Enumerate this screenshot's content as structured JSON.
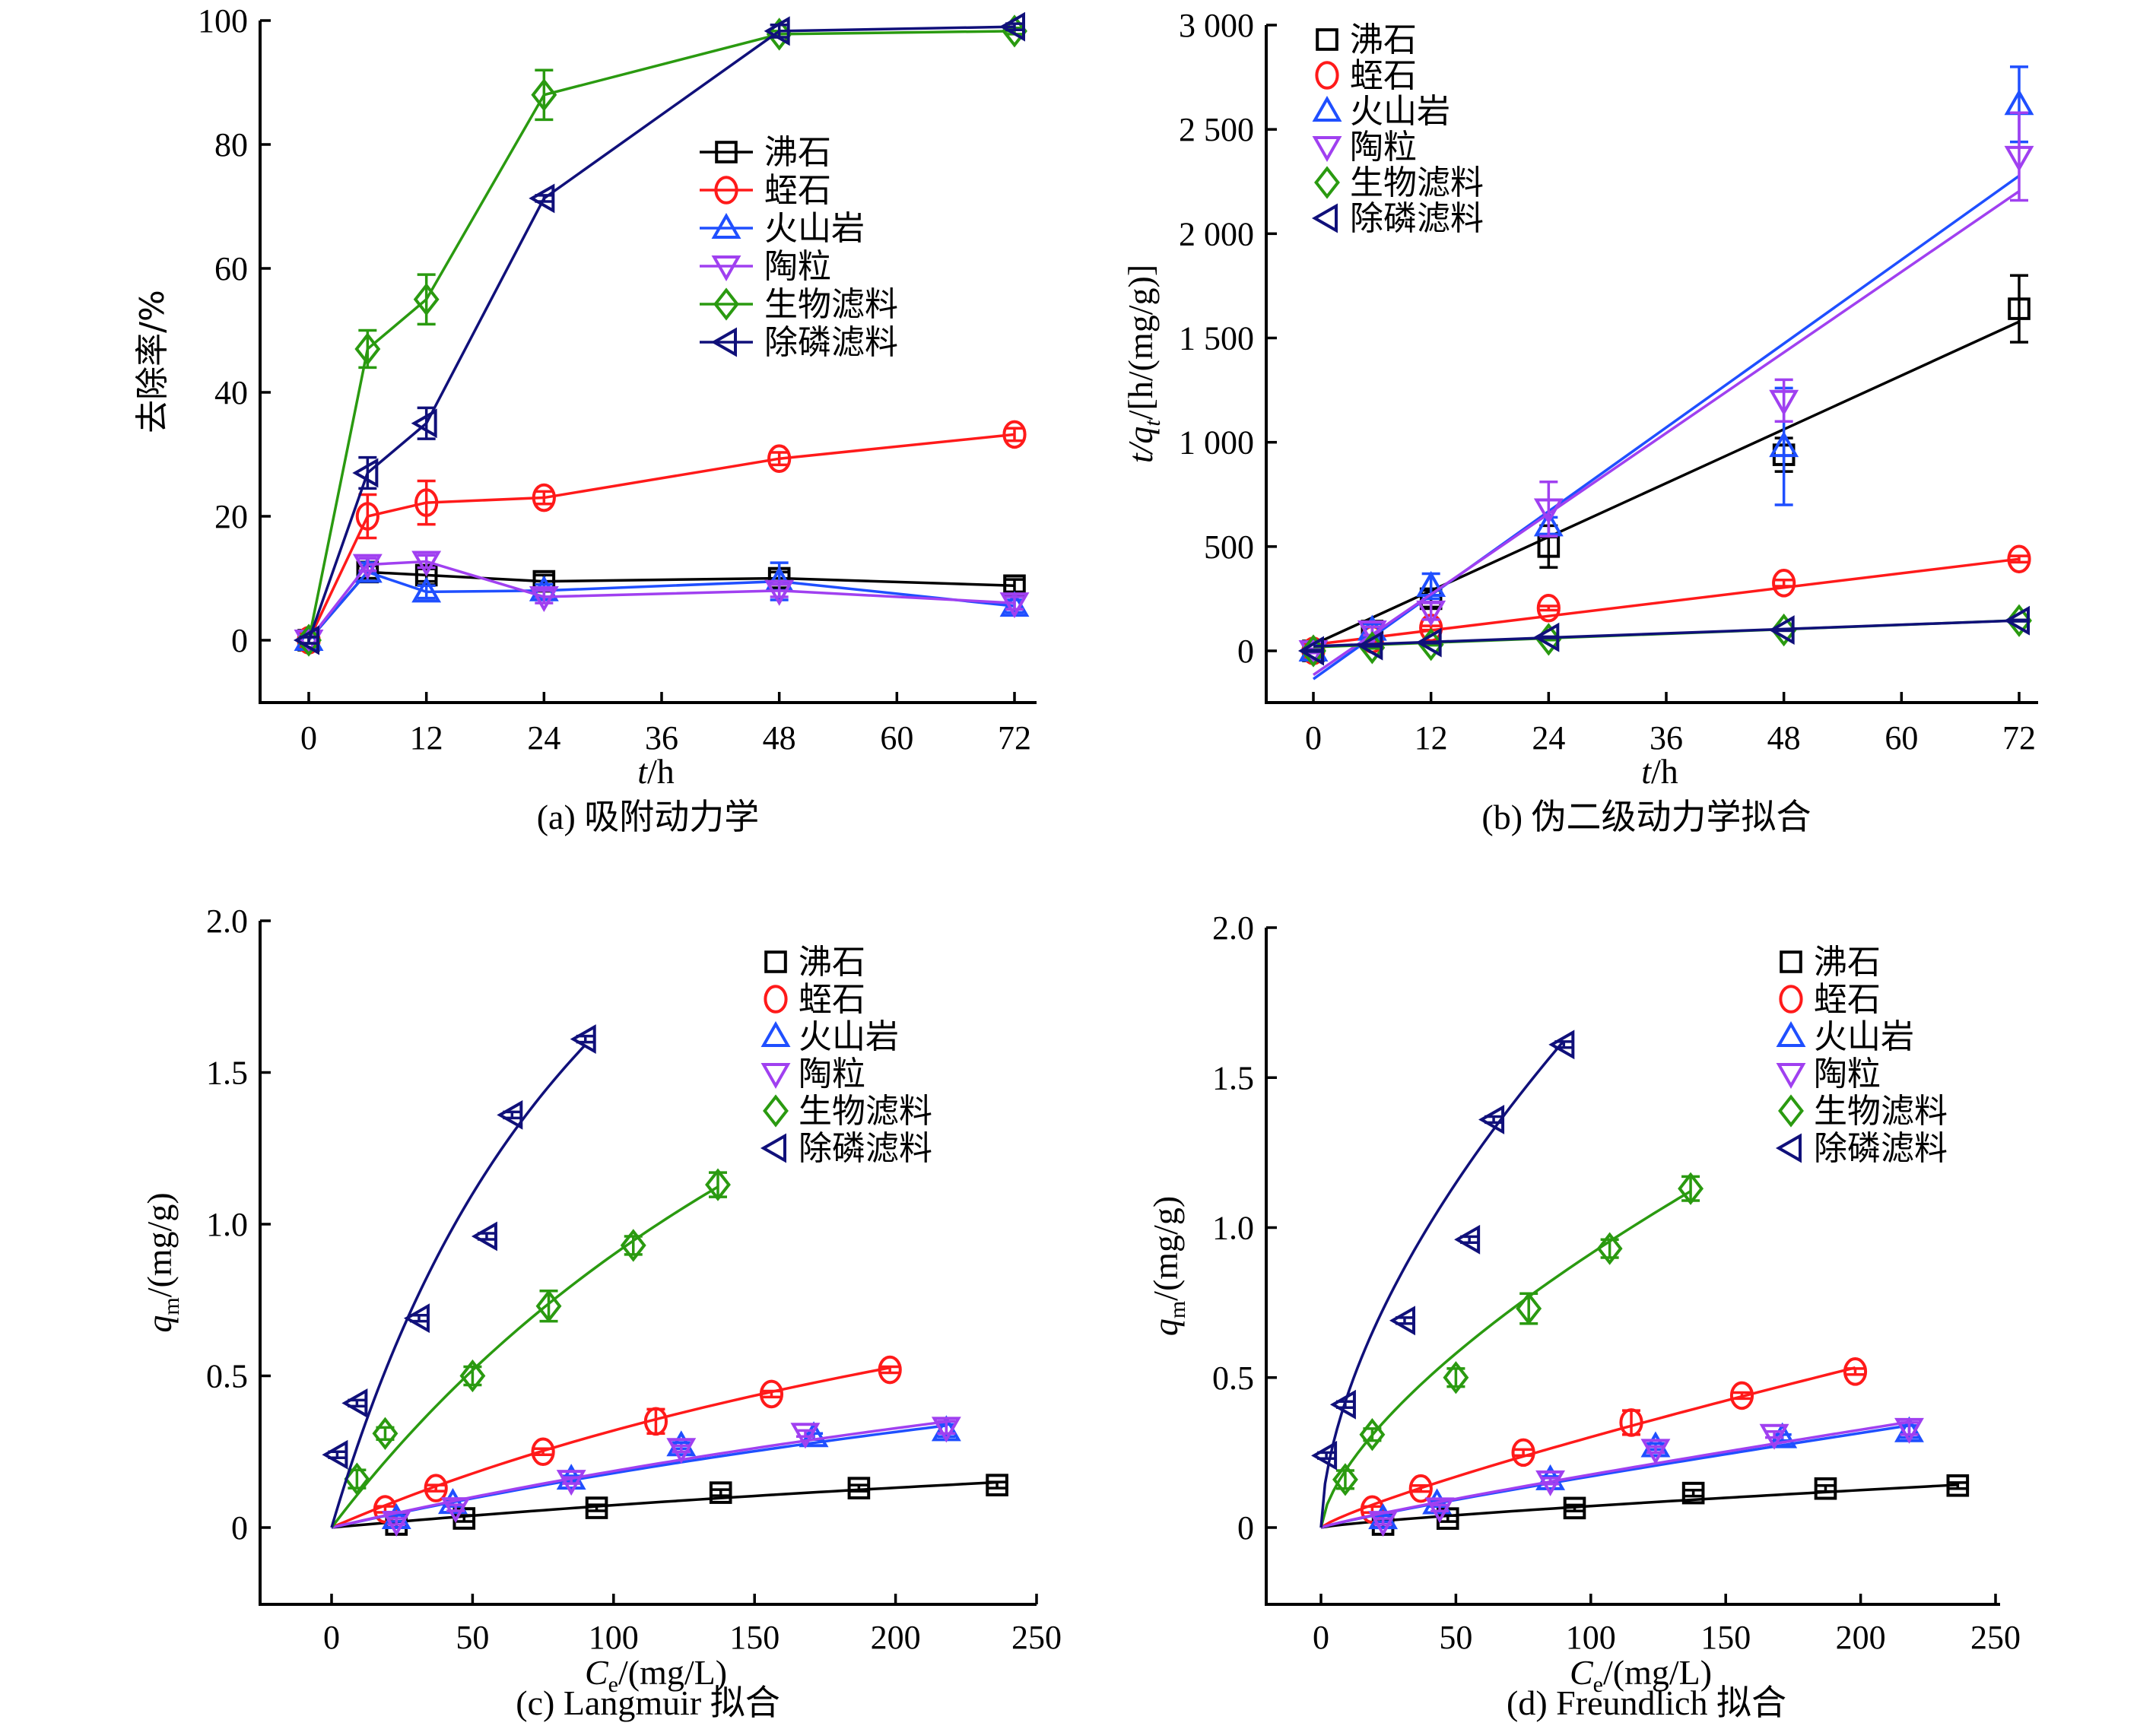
{
  "colors": {
    "沸石": "#000000",
    "蛭石": "#ff1a1a",
    "火山岩": "#1f4fff",
    "陶粒": "#a040f0",
    "生物滤料": "#2a9a10",
    "除磷滤料": "#10107a"
  },
  "chart_data": [
    {
      "id": "a",
      "type": "line",
      "caption": "(a) 吸附动力学",
      "xlabel": "t/h",
      "ylabel": "去除率/%",
      "xlim": [
        -8,
        74
      ],
      "ylim": [
        -10,
        100
      ],
      "xticks": [
        0,
        12,
        24,
        36,
        48,
        60,
        72
      ],
      "yticks": [
        0,
        20,
        40,
        60,
        80,
        100
      ],
      "legend_position": "center-right",
      "legend_style": "line-marker",
      "x": [
        0,
        6,
        12,
        24,
        48,
        72
      ],
      "series": [
        {
          "name": "沸石",
          "marker": "square",
          "values": [
            0,
            11,
            10.5,
            9.5,
            10,
            8.8
          ],
          "errors": [
            0.5,
            1,
            1,
            1,
            1,
            1
          ]
        },
        {
          "name": "蛭石",
          "marker": "circle",
          "values": [
            0,
            20,
            22.2,
            23,
            29.3,
            33.2
          ],
          "errors": [
            0.5,
            3.5,
            3.5,
            1,
            1,
            1
          ]
        },
        {
          "name": "火山岩",
          "marker": "triangle-up",
          "values": [
            0,
            11,
            7.8,
            8,
            9.5,
            5.5
          ],
          "errors": [
            0.5,
            1.5,
            1,
            1,
            3,
            1
          ]
        },
        {
          "name": "陶粒",
          "marker": "triangle-down",
          "values": [
            0,
            12.2,
            12.7,
            7,
            8,
            6
          ],
          "errors": [
            0.5,
            1,
            1,
            1,
            1,
            1
          ]
        },
        {
          "name": "生物滤料",
          "marker": "diamond",
          "values": [
            0,
            47,
            55,
            88,
            97.8,
            98.3
          ],
          "errors": [
            0.5,
            3,
            4,
            4,
            0.5,
            0.5
          ]
        },
        {
          "name": "除磷滤料",
          "marker": "triangle-left",
          "values": [
            0,
            27,
            35,
            71.3,
            98.3,
            99
          ],
          "errors": [
            0.5,
            2.5,
            2.5,
            0.5,
            1,
            0.5
          ]
        }
      ]
    },
    {
      "id": "b",
      "type": "scatter",
      "caption": "(b) 伪二级动力学拟合",
      "xlabel": "t/h",
      "ylabel": "t/q_t/[h/(mg/g)]",
      "xlim": [
        -8,
        74
      ],
      "ylim": [
        -250,
        3000
      ],
      "xticks": [
        0,
        12,
        24,
        36,
        48,
        60,
        72
      ],
      "yticks": [
        0,
        500,
        1000,
        1500,
        2000,
        2500,
        3000
      ],
      "ytick_labels": [
        "0",
        "500",
        "1 000",
        "1 500",
        "2 000",
        "2 500",
        "3 000"
      ],
      "legend_position": "top-left",
      "legend_style": "marker",
      "x": [
        0,
        6,
        12,
        24,
        48,
        72
      ],
      "series": [
        {
          "name": "沸石",
          "marker": "square",
          "values": [
            0,
            95,
            250,
            500,
            940,
            1640
          ],
          "errors": [
            10,
            20,
            40,
            100,
            80,
            160
          ],
          "fit": {
            "intercept": 30,
            "slope": 21.5
          }
        },
        {
          "name": "蛭石",
          "marker": "circle",
          "values": [
            0,
            55,
            110,
            205,
            325,
            440
          ],
          "errors": [
            5,
            10,
            10,
            10,
            15,
            15
          ],
          "fit": {
            "intercept": 30,
            "slope": 5.7
          }
        },
        {
          "name": "火山岩",
          "marker": "triangle-up",
          "values": [
            0,
            100,
            310,
            600,
            980,
            2620
          ],
          "errors": [
            10,
            30,
            60,
            40,
            280,
            180
          ],
          "fit": {
            "intercept": -135,
            "slope": 33.5
          }
        },
        {
          "name": "陶粒",
          "marker": "triangle-down",
          "values": [
            0,
            95,
            190,
            680,
            1200,
            2370
          ],
          "errors": [
            10,
            20,
            40,
            130,
            100,
            210
          ],
          "fit": {
            "intercept": -115,
            "slope": 32.2
          }
        },
        {
          "name": "生物滤料",
          "marker": "diamond",
          "values": [
            0,
            15,
            30,
            55,
            100,
            145
          ],
          "errors": [
            3,
            3,
            3,
            3,
            3,
            3
          ],
          "fit": {
            "intercept": 18,
            "slope": 1.78
          }
        },
        {
          "name": "除磷滤料",
          "marker": "triangle-left",
          "values": [
            0,
            25,
            40,
            65,
            100,
            145
          ],
          "errors": [
            3,
            3,
            3,
            3,
            3,
            3
          ],
          "fit": {
            "intercept": 22,
            "slope": 1.72
          }
        }
      ]
    },
    {
      "id": "c",
      "type": "scatter",
      "caption": "(c) Langmuir 拟合",
      "xlabel": "C_e/(mg/L)",
      "ylabel": "q_m/(mg/g)",
      "xlim": [
        -25,
        250
      ],
      "ylim": [
        -0.25,
        2.0
      ],
      "xticks": [
        0,
        50,
        100,
        150,
        200,
        250
      ],
      "yticks": [
        0,
        0.5,
        1.0,
        1.5,
        2.0
      ],
      "ytick_labels": [
        "0",
        "0.5",
        "1.0",
        "1.5",
        "2.0"
      ],
      "legend_position": "top-right",
      "legend_style": "marker",
      "fit_model": "langmuir",
      "series": [
        {
          "name": "沸石",
          "marker": "square",
          "x": [
            23,
            47,
            94,
            138,
            187,
            236
          ],
          "values": [
            0.01,
            0.03,
            0.065,
            0.115,
            0.13,
            0.14
          ],
          "errors": [
            0.01,
            0.01,
            0.01,
            0.01,
            0.01,
            0.01
          ],
          "fit": {
            "qmax": 0.6,
            "K": 0.0014,
            "xmax": 236
          }
        },
        {
          "name": "蛭石",
          "marker": "circle",
          "x": [
            19,
            37,
            75,
            115,
            156,
            198
          ],
          "values": [
            0.06,
            0.13,
            0.25,
            0.35,
            0.44,
            0.52
          ],
          "errors": [
            0.01,
            0.01,
            0.01,
            0.04,
            0.01,
            0.01
          ],
          "fit": {
            "qmax": 1.55,
            "K": 0.0026,
            "xmax": 198
          }
        },
        {
          "name": "火山岩",
          "marker": "triangle-up",
          "x": [
            23,
            43,
            85,
            124,
            171,
            218
          ],
          "values": [
            0.03,
            0.08,
            0.16,
            0.27,
            0.3,
            0.32
          ],
          "errors": [
            0.01,
            0.01,
            0.01,
            0.01,
            0.01,
            0.02
          ],
          "fit": {
            "qmax": 1.3,
            "K": 0.0016,
            "xmax": 218
          }
        },
        {
          "name": "陶粒",
          "marker": "triangle-down",
          "x": [
            23,
            44,
            85,
            124,
            168,
            218
          ],
          "values": [
            0.02,
            0.065,
            0.155,
            0.26,
            0.31,
            0.33
          ],
          "errors": [
            0.01,
            0.01,
            0.01,
            0.01,
            0.01,
            0.02
          ],
          "fit": {
            "qmax": 1.35,
            "K": 0.0016,
            "xmax": 218
          }
        },
        {
          "name": "生物滤料",
          "marker": "diamond",
          "x": [
            9,
            19,
            50,
            77,
            107,
            137
          ],
          "values": [
            0.16,
            0.31,
            0.5,
            0.73,
            0.93,
            1.13
          ],
          "errors": [
            0.03,
            0.02,
            0.03,
            0.05,
            0.03,
            0.04
          ],
          "fit": {
            "qmax": 3.4,
            "K": 0.0036,
            "xmax": 137
          }
        },
        {
          "name": "除磷滤料",
          "marker": "triangle-left",
          "x": [
            2,
            9,
            31,
            64,
            55,
            90
          ],
          "values": [
            0.24,
            0.41,
            0.69,
            1.36,
            0.96,
            1.61
          ],
          "errors": [
            0.01,
            0.01,
            0.01,
            0.01,
            0.01,
            0.01
          ],
          "fit": {
            "qmax": 3.6,
            "K": 0.0088,
            "xmax": 90
          }
        }
      ]
    },
    {
      "id": "d",
      "type": "scatter",
      "caption": "(d) Freundlich 拟合",
      "xlabel": "C_e/(mg/L)",
      "ylabel": "q_m/(mg/g)",
      "xlim": [
        -25,
        250
      ],
      "ylim": [
        -0.25,
        2.0
      ],
      "xticks": [
        0,
        50,
        100,
        150,
        200,
        250
      ],
      "yticks": [
        0,
        0.5,
        1.0,
        1.5,
        2.0
      ],
      "ytick_labels": [
        "0",
        "0.5",
        "1.0",
        "1.5",
        "2.0"
      ],
      "legend_position": "top-right",
      "legend_style": "marker",
      "fit_model": "freundlich",
      "series": [
        {
          "name": "沸石",
          "marker": "square",
          "x": [
            23,
            47,
            94,
            138,
            187,
            236
          ],
          "values": [
            0.01,
            0.03,
            0.065,
            0.115,
            0.13,
            0.14
          ],
          "errors": [
            0.01,
            0.01,
            0.01,
            0.01,
            0.01,
            0.01
          ],
          "fit": {
            "Kf": 0.0018,
            "n": 1.25,
            "xmax": 236
          }
        },
        {
          "name": "蛭石",
          "marker": "circle",
          "x": [
            19,
            37,
            75,
            115,
            156,
            198
          ],
          "values": [
            0.06,
            0.13,
            0.25,
            0.35,
            0.44,
            0.52
          ],
          "errors": [
            0.01,
            0.01,
            0.01,
            0.04,
            0.01,
            0.01
          ],
          "fit": {
            "Kf": 0.0065,
            "n": 1.2,
            "xmax": 198
          }
        },
        {
          "name": "火山岩",
          "marker": "triangle-up",
          "x": [
            23,
            43,
            85,
            124,
            171,
            218
          ],
          "values": [
            0.03,
            0.08,
            0.16,
            0.27,
            0.3,
            0.32
          ],
          "errors": [
            0.01,
            0.01,
            0.01,
            0.01,
            0.01,
            0.02
          ],
          "fit": {
            "Kf": 0.0029,
            "n": 1.13,
            "xmax": 218
          }
        },
        {
          "name": "陶粒",
          "marker": "triangle-down",
          "x": [
            23,
            44,
            85,
            124,
            168,
            218
          ],
          "values": [
            0.02,
            0.065,
            0.155,
            0.26,
            0.31,
            0.33
          ],
          "errors": [
            0.01,
            0.01,
            0.01,
            0.01,
            0.01,
            0.02
          ],
          "fit": {
            "Kf": 0.003,
            "n": 1.13,
            "xmax": 218
          }
        },
        {
          "name": "生物滤料",
          "marker": "diamond",
          "x": [
            9,
            19,
            50,
            77,
            107,
            137
          ],
          "values": [
            0.16,
            0.31,
            0.5,
            0.73,
            0.93,
            1.13
          ],
          "errors": [
            0.03,
            0.02,
            0.03,
            0.05,
            0.03,
            0.04
          ],
          "fit": {
            "Kf": 0.045,
            "n": 1.53,
            "xmax": 137
          }
        },
        {
          "name": "除磷滤料",
          "marker": "triangle-left",
          "x": [
            2,
            9,
            31,
            64,
            55,
            90
          ],
          "values": [
            0.24,
            0.41,
            0.69,
            1.36,
            0.96,
            1.61
          ],
          "errors": [
            0.01,
            0.01,
            0.01,
            0.01,
            0.01,
            0.01
          ],
          "fit": {
            "Kf": 0.115,
            "n": 1.7,
            "xmax": 90
          }
        }
      ]
    }
  ]
}
